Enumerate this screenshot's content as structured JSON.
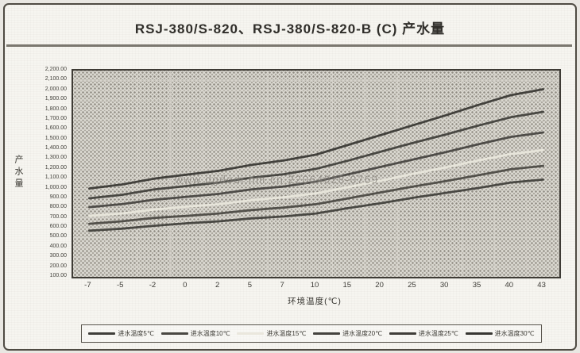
{
  "chart_data": {
    "type": "line",
    "title": "RSJ-380/S-820、RSJ-380/S-820-B (C) 产水量",
    "xlabel": "环境温度(℃)",
    "ylabel": "产水量",
    "categories": [
      "-7",
      "-5",
      "-2",
      "0",
      "2",
      "5",
      "7",
      "10",
      "15",
      "20",
      "25",
      "30",
      "35",
      "40",
      "43"
    ],
    "ylim": [
      100,
      2200
    ],
    "y_step": 100,
    "y_ticks": [
      "2,200.00",
      "2,100.00",
      "2,000.00",
      "1,900.00",
      "1,800.00",
      "1,700.00",
      "1,600.00",
      "1,500.00",
      "1,400.00",
      "1,300.00",
      "1,200.00",
      "1,100.00",
      "1,000.00",
      "900.00",
      "800.00",
      "700.00",
      "600.00",
      "500.00",
      "400.00",
      "300.00",
      "200.00",
      "100.00"
    ],
    "grid": true,
    "legend_position": "bottom",
    "plot_background_color": "#dcdad3",
    "gridline_color": "#d7d4cc",
    "series": [
      {
        "name": "进水温度5℃",
        "color": "#3f3e3a",
        "values": [
          570,
          590,
          620,
          645,
          665,
          695,
          715,
          745,
          800,
          850,
          905,
          955,
          1005,
          1060,
          1090
        ]
      },
      {
        "name": "进水温度10℃",
        "color": "#4a4843",
        "values": [
          640,
          665,
          700,
          720,
          745,
          780,
          805,
          840,
          900,
          960,
          1020,
          1075,
          1135,
          1195,
          1230
        ]
      },
      {
        "name": "进水温度15℃",
        "color": "#eae7dd",
        "values": [
          720,
          745,
          785,
          815,
          840,
          880,
          910,
          950,
          1015,
          1080,
          1150,
          1215,
          1285,
          1350,
          1390
        ]
      },
      {
        "name": "进水温度20℃",
        "color": "#45433f",
        "values": [
          810,
          840,
          885,
          915,
          945,
          990,
          1020,
          1070,
          1145,
          1220,
          1295,
          1370,
          1450,
          1525,
          1570
        ]
      },
      {
        "name": "进水温度25℃",
        "color": "#403e3a",
        "values": [
          900,
          935,
          990,
          1025,
          1060,
          1110,
          1145,
          1200,
          1285,
          1375,
          1465,
          1550,
          1640,
          1725,
          1780
        ]
      },
      {
        "name": "进水温度30℃",
        "color": "#383733",
        "values": [
          1000,
          1040,
          1100,
          1140,
          1180,
          1240,
          1285,
          1345,
          1445,
          1545,
          1645,
          1745,
          1850,
          1950,
          2010
        ]
      }
    ]
  },
  "watermark": {
    "text": "www.dgdodi.hm.cn 22064028-0769"
  }
}
